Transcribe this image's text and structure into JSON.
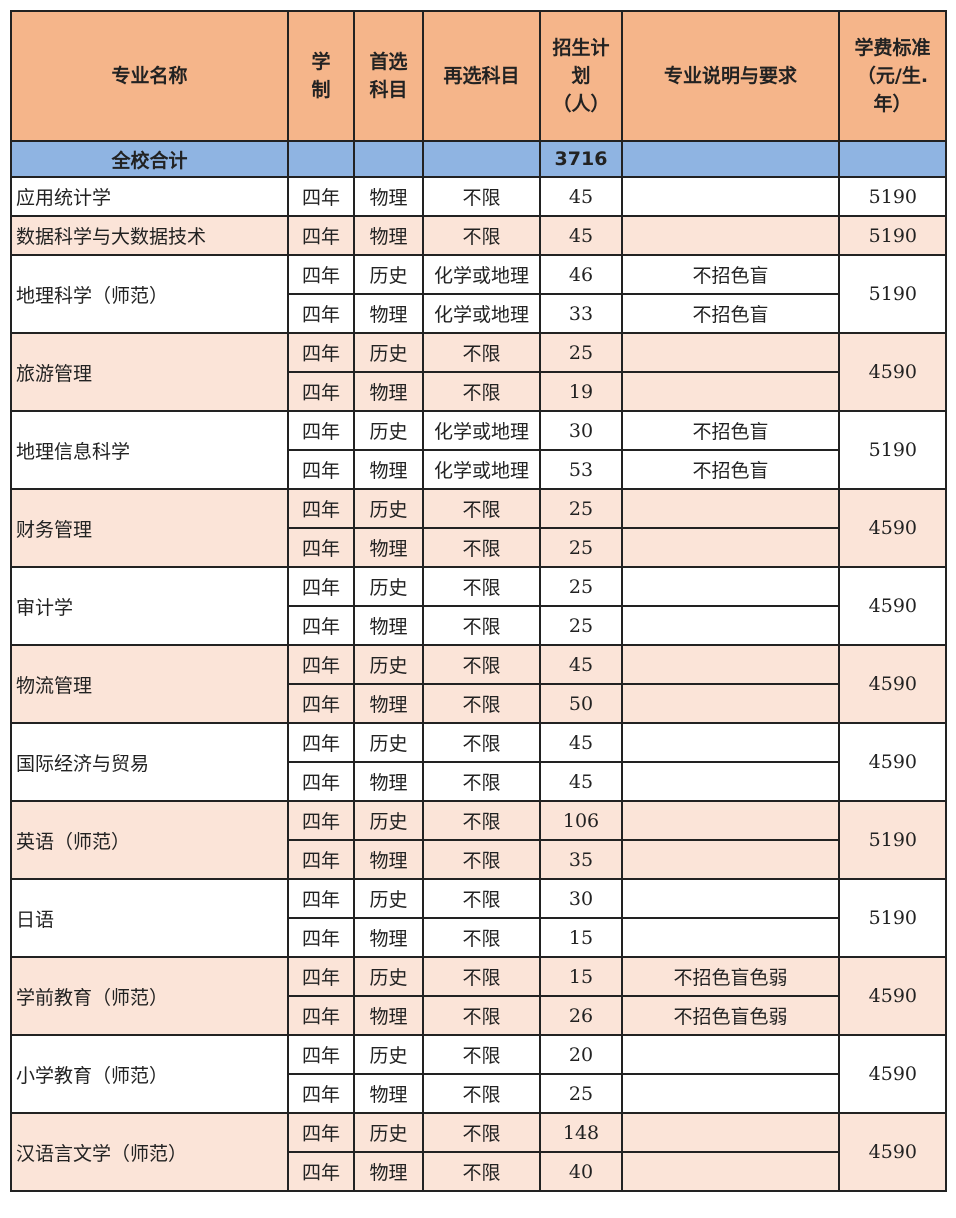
{
  "headers": [
    "专业名称",
    "学\n制",
    "首选\n科目",
    "再选科目",
    "招生计\n划\n（人）",
    "专业说明与要求",
    "学费标准\n（元/生.\n年）"
  ],
  "total": {
    "label": "全校合计",
    "count": "3716"
  },
  "colors": {
    "header": "#f5b58a",
    "total": "#8fb4e2",
    "alt_row": "#fbe4d8"
  },
  "majors": [
    {
      "name": "应用统计学",
      "fee": "5190",
      "rows": [
        [
          "四年",
          "物理",
          "不限",
          "45",
          ""
        ]
      ]
    },
    {
      "name": "数据科学与大数据技术",
      "fee": "5190",
      "rows": [
        [
          "四年",
          "物理",
          "不限",
          "45",
          ""
        ]
      ]
    },
    {
      "name": "地理科学（师范）",
      "fee": "5190",
      "rows": [
        [
          "四年",
          "历史",
          "化学或地理",
          "46",
          "不招色盲"
        ],
        [
          "四年",
          "物理",
          "化学或地理",
          "33",
          "不招色盲"
        ]
      ]
    },
    {
      "name": "旅游管理",
      "fee": "4590",
      "rows": [
        [
          "四年",
          "历史",
          "不限",
          "25",
          ""
        ],
        [
          "四年",
          "物理",
          "不限",
          "19",
          ""
        ]
      ]
    },
    {
      "name": "地理信息科学",
      "fee": "5190",
      "rows": [
        [
          "四年",
          "历史",
          "化学或地理",
          "30",
          "不招色盲"
        ],
        [
          "四年",
          "物理",
          "化学或地理",
          "53",
          "不招色盲"
        ]
      ]
    },
    {
      "name": "财务管理",
      "fee": "4590",
      "rows": [
        [
          "四年",
          "历史",
          "不限",
          "25",
          ""
        ],
        [
          "四年",
          "物理",
          "不限",
          "25",
          ""
        ]
      ]
    },
    {
      "name": "审计学",
      "fee": "4590",
      "rows": [
        [
          "四年",
          "历史",
          "不限",
          "25",
          ""
        ],
        [
          "四年",
          "物理",
          "不限",
          "25",
          ""
        ]
      ]
    },
    {
      "name": "物流管理",
      "fee": "4590",
      "rows": [
        [
          "四年",
          "历史",
          "不限",
          "45",
          ""
        ],
        [
          "四年",
          "物理",
          "不限",
          "50",
          ""
        ]
      ]
    },
    {
      "name": "国际经济与贸易",
      "fee": "4590",
      "rows": [
        [
          "四年",
          "历史",
          "不限",
          "45",
          ""
        ],
        [
          "四年",
          "物理",
          "不限",
          "45",
          ""
        ]
      ]
    },
    {
      "name": "英语（师范）",
      "fee": "5190",
      "rows": [
        [
          "四年",
          "历史",
          "不限",
          "106",
          ""
        ],
        [
          "四年",
          "物理",
          "不限",
          "35",
          ""
        ]
      ]
    },
    {
      "name": "日语",
      "fee": "5190",
      "rows": [
        [
          "四年",
          "历史",
          "不限",
          "30",
          ""
        ],
        [
          "四年",
          "物理",
          "不限",
          "15",
          ""
        ]
      ]
    },
    {
      "name": "学前教育（师范）",
      "fee": "4590",
      "rows": [
        [
          "四年",
          "历史",
          "不限",
          "15",
          "不招色盲色弱"
        ],
        [
          "四年",
          "物理",
          "不限",
          "26",
          "不招色盲色弱"
        ]
      ]
    },
    {
      "name": "小学教育（师范）",
      "fee": "4590",
      "rows": [
        [
          "四年",
          "历史",
          "不限",
          "20",
          ""
        ],
        [
          "四年",
          "物理",
          "不限",
          "25",
          ""
        ]
      ]
    },
    {
      "name": "汉语言文学（师范）",
      "fee": "4590",
      "rows": [
        [
          "四年",
          "历史",
          "不限",
          "148",
          ""
        ],
        [
          "四年",
          "物理",
          "不限",
          "40",
          ""
        ]
      ]
    }
  ]
}
